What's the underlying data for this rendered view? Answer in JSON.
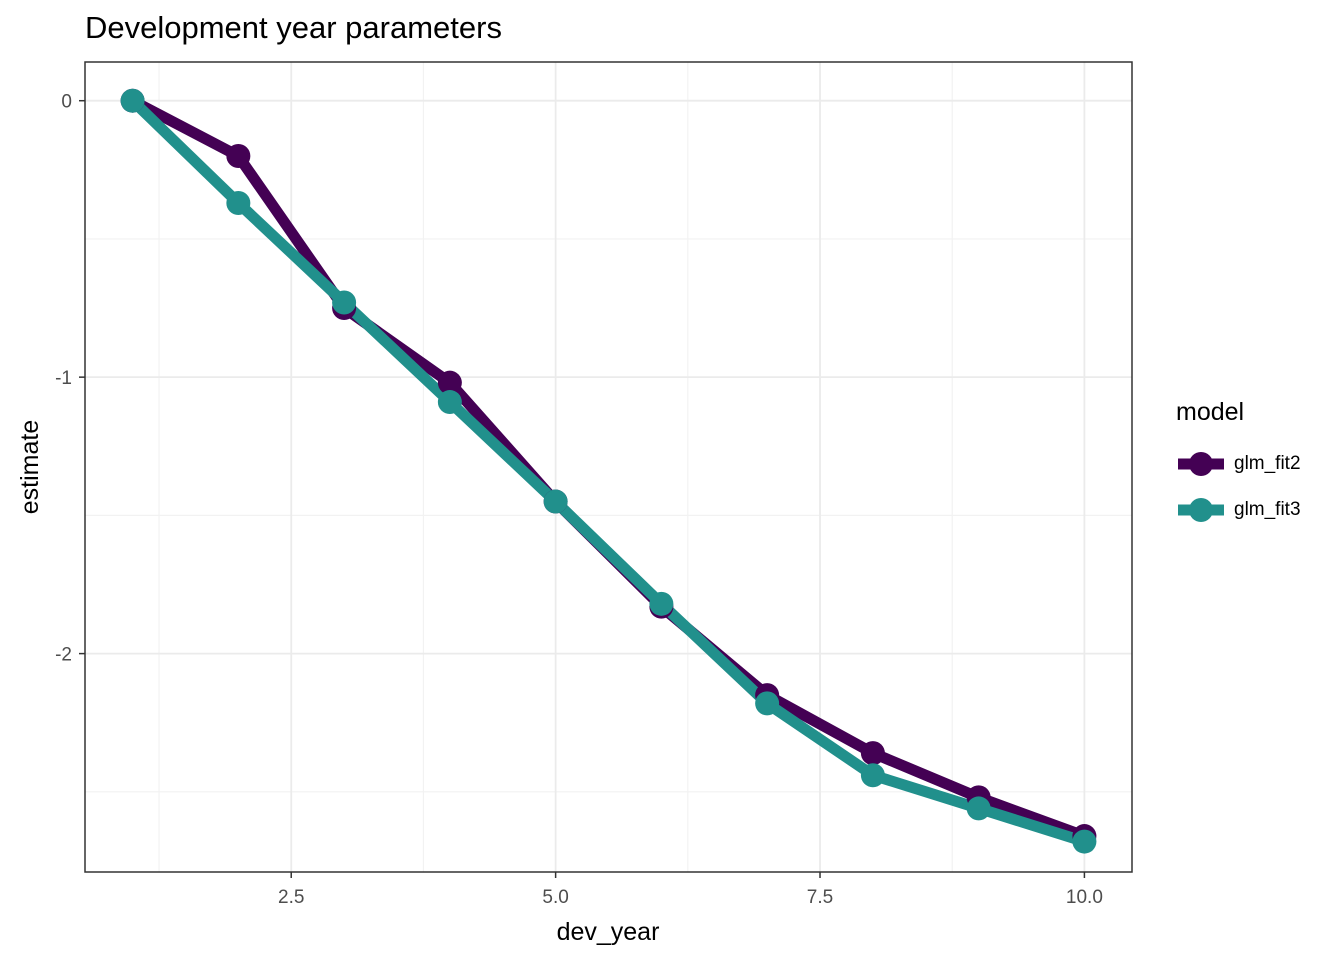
{
  "chart_data": {
    "type": "line",
    "title": "Development year parameters",
    "xlabel": "dev_year",
    "ylabel": "estimate",
    "xlim": [
      0.55,
      10.45
    ],
    "ylim": [
      -2.79,
      0.14
    ],
    "x_ticks": [
      2.5,
      5.0,
      7.5,
      10.0
    ],
    "x_tick_labels": [
      "2.5",
      "5.0",
      "7.5",
      "10.0"
    ],
    "y_ticks": [
      0,
      -1,
      -2
    ],
    "y_tick_labels": [
      "0",
      "-1",
      "-2"
    ],
    "grid": true,
    "legend": {
      "title": "model",
      "placement": "right"
    },
    "x": [
      1,
      2,
      3,
      4,
      5,
      6,
      7,
      8,
      9,
      10
    ],
    "series": [
      {
        "name": "glm_fit2",
        "color": "#440154",
        "values": [
          0,
          -0.2,
          -0.75,
          -1.02,
          -1.45,
          -1.83,
          -2.15,
          -2.36,
          -2.52,
          -2.66
        ]
      },
      {
        "name": "glm_fit3",
        "color": "#21908C",
        "values": [
          0,
          -0.37,
          -0.73,
          -1.09,
          -1.45,
          -1.82,
          -2.18,
          -2.44,
          -2.56,
          -2.68
        ]
      }
    ]
  }
}
